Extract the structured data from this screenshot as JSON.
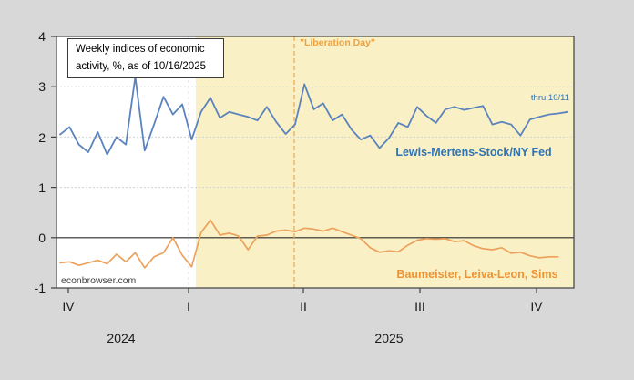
{
  "chart_data": {
    "type": "line",
    "title": "Weekly indices of economic activity, %, as of 10/16/2025",
    "title_line1": "Weekly indices of economic",
    "title_line2": "activity, %, as of 10/16/2025",
    "watermark": "econbrowser.com",
    "annotations": {
      "liberation_day": "\"Liberation Day\"",
      "thru_note": "thru 10/11"
    },
    "x_axis": {
      "quarter_ticks": [
        "IV",
        "I",
        "II",
        "III",
        "IV"
      ],
      "year_labels": [
        "2024",
        "2025"
      ]
    },
    "y_axis": {
      "ticks": [
        "4",
        "3",
        "2",
        "1",
        "0",
        "-1"
      ],
      "range": [
        -1,
        4
      ],
      "grid": "dotted horizontal at 1,2,3; solid zero line"
    },
    "colors": {
      "background": "#d8d8d8",
      "plot_background": "#ffffff",
      "shade": "#faf0c5",
      "blue_line": "#5b83bd",
      "blue_label": "#2e74b5",
      "orange_line": "#eca25c",
      "orange_label": "#ee9333",
      "liberation_line": "#e9a84f"
    },
    "shaded_region_note": "yellow highlight covers 2025 (from quarter I tick to right edge)",
    "series": [
      {
        "name": "Lewis-Mertens-Stock/NY Fed",
        "frequency": "weekly",
        "values": [
          2.05,
          2.2,
          1.85,
          1.7,
          2.1,
          1.65,
          2.0,
          1.85,
          3.2,
          1.73,
          2.25,
          2.8,
          2.45,
          2.65,
          1.95,
          2.5,
          2.78,
          2.38,
          2.5,
          2.45,
          2.4,
          2.33,
          2.6,
          2.3,
          2.06,
          2.25,
          3.05,
          2.55,
          2.67,
          2.33,
          2.45,
          2.15,
          1.95,
          2.03,
          1.78,
          1.98,
          2.28,
          2.2,
          2.6,
          2.42,
          2.28,
          2.55,
          2.6,
          2.54,
          2.58,
          2.62,
          2.25,
          2.3,
          2.25,
          2.03,
          2.35,
          2.4,
          2.45,
          2.47,
          2.5
        ]
      },
      {
        "name": "Baumeister, Leiva-Leon, Sims",
        "frequency": "weekly",
        "values": [
          -0.5,
          -0.48,
          -0.55,
          -0.5,
          -0.45,
          -0.52,
          -0.33,
          -0.48,
          -0.3,
          -0.6,
          -0.38,
          -0.3,
          0.0,
          -0.35,
          -0.58,
          0.1,
          0.35,
          0.05,
          0.09,
          0.03,
          -0.24,
          0.03,
          0.05,
          0.13,
          0.15,
          0.12,
          0.19,
          0.17,
          0.13,
          0.19,
          0.12,
          0.05,
          -0.02,
          -0.2,
          -0.29,
          -0.26,
          -0.28,
          -0.15,
          -0.05,
          -0.02,
          -0.03,
          -0.02,
          -0.08,
          -0.06,
          -0.16,
          -0.22,
          -0.24,
          -0.2,
          -0.31,
          -0.29,
          -0.36,
          -0.4,
          -0.38,
          -0.38
        ]
      }
    ]
  }
}
